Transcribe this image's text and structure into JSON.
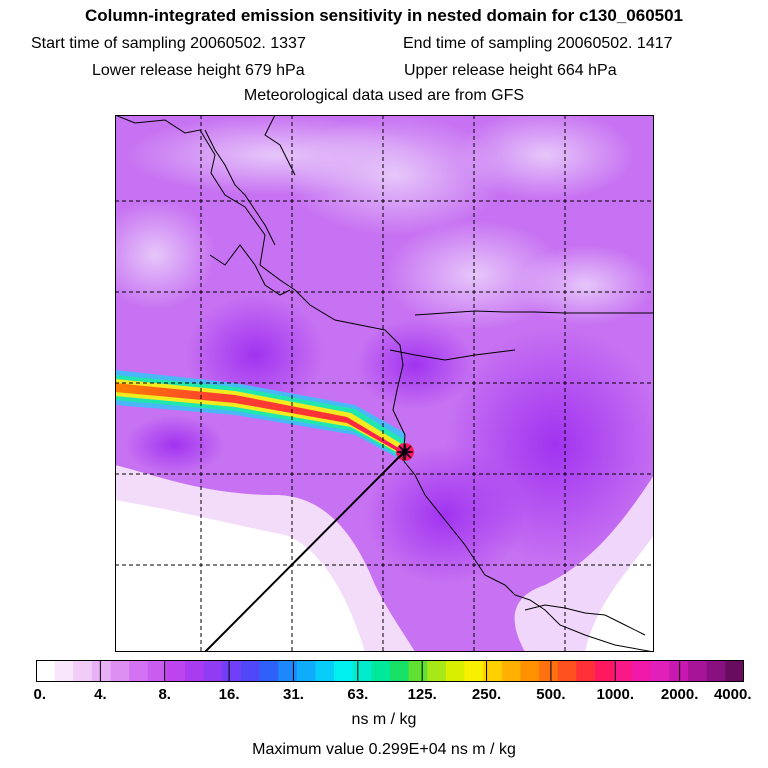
{
  "header": {
    "title": "Column-integrated emission sensitivity in nested domain for c130_060501",
    "start_label": "Start time of sampling 20060502.  1337",
    "end_label": "End time of sampling 20060502.  1417",
    "lower_label": "Lower release height  679 hPa",
    "upper_label": "Upper release height  664 hPa",
    "met_label": "Meteorological data used are from GFS"
  },
  "colorbar": {
    "ticks": [
      "0.",
      "4.",
      "8.",
      "16.",
      "31.",
      "63.",
      "125.",
      "250.",
      "500.",
      "1000.",
      "2000.",
      "4000."
    ],
    "colors": [
      "#ffffff",
      "#f8e6fb",
      "#f0ccf7",
      "#e8b0f5",
      "#de90f2",
      "#d373f1",
      "#c95df0",
      "#be44ef",
      "#a93cf0",
      "#8f3cf4",
      "#7140f6",
      "#5048f8",
      "#2e60fa",
      "#1c88fc",
      "#10acfc",
      "#06cef8",
      "#00f0f0",
      "#00eccc",
      "#00e89a",
      "#18e066",
      "#60e030",
      "#a8e818",
      "#d8f000",
      "#f8f000",
      "#ffd000",
      "#ffb000",
      "#ff9000",
      "#ff7010",
      "#ff5020",
      "#ff3038",
      "#ff1860",
      "#f81888",
      "#f018a8",
      "#e020b8",
      "#c818b0",
      "#a81498",
      "#881080",
      "#680c60"
    ],
    "units": "ns m / kg",
    "max_value": "Maximum value  0.299E+04 ns m / kg"
  },
  "map": {
    "receptor_marker": "receptor-star"
  }
}
